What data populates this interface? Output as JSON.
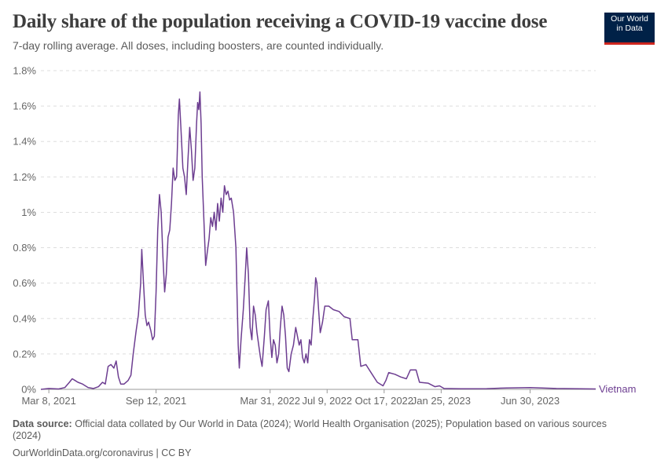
{
  "header": {
    "title": "Daily share of the population receiving a COVID-19 vaccine dose",
    "subtitle": "7-day rolling average. All doses, including boosters, are counted individually.",
    "logo_line1": "Our World",
    "logo_line2": "in Data"
  },
  "footer": {
    "source_label": "Data source:",
    "source_text": "Official data collated by Our World in Data (2024); World Health Organisation (2025); Population based on various sources (2024)",
    "url_text": "OurWorldinData.org/coronavirus | CC BY"
  },
  "colors": {
    "series": "#6d3e91",
    "grid": "#dddddd",
    "axis": "#999999"
  },
  "chart_data": {
    "type": "line",
    "title": "Daily share of the population receiving a COVID-19 vaccine dose",
    "subtitle": "7-day rolling average. All doses, including boosters, are counted individually.",
    "ylim": [
      0,
      1.8
    ],
    "y_unit": "%",
    "y_ticks": [
      "0%",
      "0.2%",
      "0.4%",
      "0.6%",
      "0.8%",
      "1%",
      "1.2%",
      "1.4%",
      "1.6%",
      "1.8%"
    ],
    "x_range": [
      "2021-02-22",
      "2023-10-23"
    ],
    "x_ticks": [
      {
        "date": "2021-03-08",
        "label": "Mar 8, 2021"
      },
      {
        "date": "2021-09-12",
        "label": "Sep 12, 2021"
      },
      {
        "date": "2022-03-31",
        "label": "Mar 31, 2022"
      },
      {
        "date": "2022-07-09",
        "label": "Jul 9, 2022"
      },
      {
        "date": "2022-10-17",
        "label": "Oct 17, 2022"
      },
      {
        "date": "2023-01-25",
        "label": "Jan 25, 2023"
      },
      {
        "date": "2023-06-30",
        "label": "Jun 30, 2023"
      }
    ],
    "grid": true,
    "series": [
      {
        "name": "Vietnam",
        "points": [
          [
            "2021-02-22",
            0.0
          ],
          [
            "2021-03-08",
            0.005
          ],
          [
            "2021-03-25",
            0.002
          ],
          [
            "2021-04-05",
            0.01
          ],
          [
            "2021-04-13",
            0.04
          ],
          [
            "2021-04-18",
            0.06
          ],
          [
            "2021-04-23",
            0.05
          ],
          [
            "2021-04-28",
            0.04
          ],
          [
            "2021-05-06",
            0.03
          ],
          [
            "2021-05-16",
            0.01
          ],
          [
            "2021-05-25",
            0.005
          ],
          [
            "2021-06-03",
            0.015
          ],
          [
            "2021-06-10",
            0.04
          ],
          [
            "2021-06-15",
            0.03
          ],
          [
            "2021-06-20",
            0.13
          ],
          [
            "2021-06-25",
            0.14
          ],
          [
            "2021-06-30",
            0.12
          ],
          [
            "2021-07-04",
            0.16
          ],
          [
            "2021-07-08",
            0.07
          ],
          [
            "2021-07-12",
            0.03
          ],
          [
            "2021-07-18",
            0.03
          ],
          [
            "2021-07-25",
            0.05
          ],
          [
            "2021-07-30",
            0.08
          ],
          [
            "2021-08-03",
            0.2
          ],
          [
            "2021-08-08",
            0.33
          ],
          [
            "2021-08-12",
            0.42
          ],
          [
            "2021-08-16",
            0.6
          ],
          [
            "2021-08-18",
            0.79
          ],
          [
            "2021-08-21",
            0.6
          ],
          [
            "2021-08-24",
            0.42
          ],
          [
            "2021-08-27",
            0.36
          ],
          [
            "2021-08-30",
            0.38
          ],
          [
            "2021-09-03",
            0.33
          ],
          [
            "2021-09-06",
            0.28
          ],
          [
            "2021-09-09",
            0.3
          ],
          [
            "2021-09-12",
            0.55
          ],
          [
            "2021-09-15",
            0.9
          ],
          [
            "2021-09-18",
            1.1
          ],
          [
            "2021-09-21",
            1.0
          ],
          [
            "2021-09-24",
            0.75
          ],
          [
            "2021-09-27",
            0.55
          ],
          [
            "2021-09-30",
            0.65
          ],
          [
            "2021-10-03",
            0.86
          ],
          [
            "2021-10-06",
            0.9
          ],
          [
            "2021-10-09",
            1.05
          ],
          [
            "2021-10-12",
            1.25
          ],
          [
            "2021-10-15",
            1.18
          ],
          [
            "2021-10-18",
            1.2
          ],
          [
            "2021-10-21",
            1.55
          ],
          [
            "2021-10-23",
            1.64
          ],
          [
            "2021-10-26",
            1.45
          ],
          [
            "2021-10-29",
            1.25
          ],
          [
            "2021-11-01",
            1.2
          ],
          [
            "2021-11-04",
            1.1
          ],
          [
            "2021-11-07",
            1.3
          ],
          [
            "2021-11-10",
            1.48
          ],
          [
            "2021-11-13",
            1.35
          ],
          [
            "2021-11-16",
            1.18
          ],
          [
            "2021-11-19",
            1.25
          ],
          [
            "2021-11-22",
            1.5
          ],
          [
            "2021-11-24",
            1.62
          ],
          [
            "2021-11-26",
            1.58
          ],
          [
            "2021-11-28",
            1.68
          ],
          [
            "2021-11-30",
            1.5
          ],
          [
            "2021-12-02",
            1.2
          ],
          [
            "2021-12-05",
            0.95
          ],
          [
            "2021-12-08",
            0.7
          ],
          [
            "2021-12-11",
            0.78
          ],
          [
            "2021-12-14",
            0.85
          ],
          [
            "2021-12-17",
            0.97
          ],
          [
            "2021-12-20",
            0.92
          ],
          [
            "2021-12-23",
            1.0
          ],
          [
            "2021-12-26",
            0.9
          ],
          [
            "2021-12-29",
            1.05
          ],
          [
            "2022-01-01",
            0.95
          ],
          [
            "2022-01-04",
            1.08
          ],
          [
            "2022-01-07",
            1.0
          ],
          [
            "2022-01-10",
            1.15
          ],
          [
            "2022-01-13",
            1.1
          ],
          [
            "2022-01-16",
            1.12
          ],
          [
            "2022-01-19",
            1.07
          ],
          [
            "2022-01-22",
            1.08
          ],
          [
            "2022-01-26",
            1.0
          ],
          [
            "2022-01-30",
            0.8
          ],
          [
            "2022-02-03",
            0.25
          ],
          [
            "2022-02-05",
            0.12
          ],
          [
            "2022-02-08",
            0.28
          ],
          [
            "2022-02-12",
            0.45
          ],
          [
            "2022-02-15",
            0.62
          ],
          [
            "2022-02-18",
            0.8
          ],
          [
            "2022-02-21",
            0.65
          ],
          [
            "2022-02-24",
            0.35
          ],
          [
            "2022-02-27",
            0.28
          ],
          [
            "2022-03-02",
            0.47
          ],
          [
            "2022-03-05",
            0.42
          ],
          [
            "2022-03-08",
            0.32
          ],
          [
            "2022-03-11",
            0.25
          ],
          [
            "2022-03-14",
            0.18
          ],
          [
            "2022-03-17",
            0.13
          ],
          [
            "2022-03-21",
            0.3
          ],
          [
            "2022-03-24",
            0.45
          ],
          [
            "2022-03-28",
            0.5
          ],
          [
            "2022-03-31",
            0.3
          ],
          [
            "2022-04-03",
            0.18
          ],
          [
            "2022-04-06",
            0.28
          ],
          [
            "2022-04-09",
            0.25
          ],
          [
            "2022-04-12",
            0.15
          ],
          [
            "2022-04-15",
            0.2
          ],
          [
            "2022-04-18",
            0.35
          ],
          [
            "2022-04-21",
            0.47
          ],
          [
            "2022-04-24",
            0.42
          ],
          [
            "2022-04-27",
            0.3
          ],
          [
            "2022-04-30",
            0.12
          ],
          [
            "2022-05-03",
            0.1
          ],
          [
            "2022-05-07",
            0.2
          ],
          [
            "2022-05-11",
            0.25
          ],
          [
            "2022-05-15",
            0.35
          ],
          [
            "2022-05-18",
            0.3
          ],
          [
            "2022-05-21",
            0.25
          ],
          [
            "2022-05-24",
            0.28
          ],
          [
            "2022-05-27",
            0.18
          ],
          [
            "2022-05-30",
            0.15
          ],
          [
            "2022-06-02",
            0.2
          ],
          [
            "2022-06-05",
            0.15
          ],
          [
            "2022-06-08",
            0.28
          ],
          [
            "2022-06-11",
            0.25
          ],
          [
            "2022-06-14",
            0.4
          ],
          [
            "2022-06-17",
            0.52
          ],
          [
            "2022-06-19",
            0.63
          ],
          [
            "2022-06-21",
            0.6
          ],
          [
            "2022-06-24",
            0.45
          ],
          [
            "2022-06-27",
            0.32
          ],
          [
            "2022-07-01",
            0.38
          ],
          [
            "2022-07-05",
            0.47
          ],
          [
            "2022-07-12",
            0.47
          ],
          [
            "2022-07-20",
            0.45
          ],
          [
            "2022-07-30",
            0.44
          ],
          [
            "2022-08-08",
            0.41
          ],
          [
            "2022-08-18",
            0.4
          ],
          [
            "2022-08-22",
            0.28
          ],
          [
            "2022-09-01",
            0.28
          ],
          [
            "2022-09-06",
            0.13
          ],
          [
            "2022-09-15",
            0.14
          ],
          [
            "2022-09-25",
            0.09
          ],
          [
            "2022-10-05",
            0.04
          ],
          [
            "2022-10-15",
            0.02
          ],
          [
            "2022-10-20",
            0.05
          ],
          [
            "2022-10-25",
            0.095
          ],
          [
            "2022-11-05",
            0.085
          ],
          [
            "2022-11-15",
            0.07
          ],
          [
            "2022-11-25",
            0.06
          ],
          [
            "2022-12-02",
            0.11
          ],
          [
            "2022-12-12",
            0.11
          ],
          [
            "2022-12-18",
            0.04
          ],
          [
            "2023-01-02",
            0.035
          ],
          [
            "2023-01-14",
            0.015
          ],
          [
            "2023-01-22",
            0.02
          ],
          [
            "2023-01-30",
            0.005
          ],
          [
            "2023-03-01",
            0.003
          ],
          [
            "2023-04-15",
            0.004
          ],
          [
            "2023-05-20",
            0.008
          ],
          [
            "2023-06-30",
            0.01
          ],
          [
            "2023-08-15",
            0.005
          ],
          [
            "2023-10-23",
            0.002
          ]
        ]
      }
    ]
  }
}
